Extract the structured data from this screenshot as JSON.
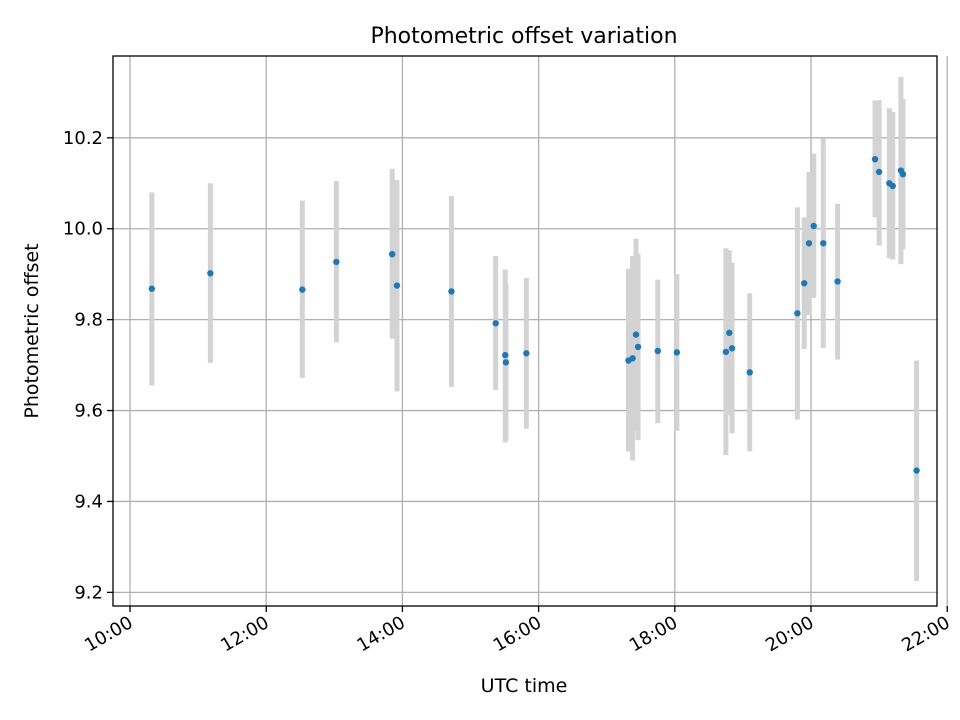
{
  "chart_data": {
    "type": "scatter",
    "title": "Photometric offset variation",
    "xlabel": "UTC time",
    "ylabel": "Photometric offset",
    "x_unit": "hours (UTC)",
    "xlim": [
      9.75,
      21.85
    ],
    "ylim": [
      9.17,
      10.38
    ],
    "x_ticks": [
      {
        "value": 10,
        "label": "10:00"
      },
      {
        "value": 12,
        "label": "12:00"
      },
      {
        "value": 14,
        "label": "14:00"
      },
      {
        "value": 16,
        "label": "16:00"
      },
      {
        "value": 18,
        "label": "18:00"
      },
      {
        "value": 20,
        "label": "20:00"
      },
      {
        "value": 22,
        "label": "22:00"
      }
    ],
    "y_ticks": [
      {
        "value": 9.2,
        "label": "9.2"
      },
      {
        "value": 9.4,
        "label": "9.4"
      },
      {
        "value": 9.6,
        "label": "9.6"
      },
      {
        "value": 9.8,
        "label": "9.8"
      },
      {
        "value": 10.0,
        "label": "10.0"
      },
      {
        "value": 10.2,
        "label": "10.2"
      }
    ],
    "grid": true,
    "marker_color": "#1f77b4",
    "errorbar_color": "#d3d3d3",
    "series": [
      {
        "name": "Photometric offset",
        "points": [
          {
            "x": 10.32,
            "y": 9.868,
            "lo": 9.655,
            "hi": 10.08
          },
          {
            "x": 11.18,
            "y": 9.902,
            "lo": 9.705,
            "hi": 10.1
          },
          {
            "x": 12.53,
            "y": 9.866,
            "lo": 9.672,
            "hi": 10.062
          },
          {
            "x": 13.03,
            "y": 9.927,
            "lo": 9.75,
            "hi": 10.105
          },
          {
            "x": 13.85,
            "y": 9.944,
            "lo": 9.758,
            "hi": 10.132
          },
          {
            "x": 13.92,
            "y": 9.875,
            "lo": 9.642,
            "hi": 10.107
          },
          {
            "x": 14.72,
            "y": 9.862,
            "lo": 9.652,
            "hi": 10.072
          },
          {
            "x": 15.37,
            "y": 9.792,
            "lo": 9.645,
            "hi": 9.94
          },
          {
            "x": 15.51,
            "y": 9.722,
            "lo": 9.53,
            "hi": 9.91
          },
          {
            "x": 15.52,
            "y": 9.706,
            "lo": 9.535,
            "hi": 9.88
          },
          {
            "x": 15.82,
            "y": 9.726,
            "lo": 9.56,
            "hi": 9.892
          },
          {
            "x": 17.32,
            "y": 9.71,
            "lo": 9.51,
            "hi": 9.912
          },
          {
            "x": 17.38,
            "y": 9.715,
            "lo": 9.49,
            "hi": 9.94
          },
          {
            "x": 17.43,
            "y": 9.767,
            "lo": 9.555,
            "hi": 9.978
          },
          {
            "x": 17.46,
            "y": 9.74,
            "lo": 9.535,
            "hi": 9.945
          },
          {
            "x": 17.75,
            "y": 9.731,
            "lo": 9.572,
            "hi": 9.888
          },
          {
            "x": 18.03,
            "y": 9.728,
            "lo": 9.555,
            "hi": 9.9
          },
          {
            "x": 18.75,
            "y": 9.729,
            "lo": 9.502,
            "hi": 9.957
          },
          {
            "x": 18.8,
            "y": 9.771,
            "lo": 9.59,
            "hi": 9.952
          },
          {
            "x": 18.84,
            "y": 9.737,
            "lo": 9.55,
            "hi": 9.925
          },
          {
            "x": 19.1,
            "y": 9.684,
            "lo": 9.51,
            "hi": 9.858
          },
          {
            "x": 19.8,
            "y": 9.814,
            "lo": 9.58,
            "hi": 10.047
          },
          {
            "x": 19.9,
            "y": 9.88,
            "lo": 9.735,
            "hi": 10.025
          },
          {
            "x": 19.97,
            "y": 9.968,
            "lo": 9.81,
            "hi": 10.125
          },
          {
            "x": 20.04,
            "y": 10.006,
            "lo": 9.848,
            "hi": 10.165
          },
          {
            "x": 20.18,
            "y": 9.968,
            "lo": 9.738,
            "hi": 10.198
          },
          {
            "x": 20.39,
            "y": 9.884,
            "lo": 9.712,
            "hi": 10.055
          },
          {
            "x": 20.94,
            "y": 10.153,
            "lo": 10.025,
            "hi": 10.282
          },
          {
            "x": 21.0,
            "y": 10.125,
            "lo": 9.963,
            "hi": 10.283
          },
          {
            "x": 21.15,
            "y": 10.1,
            "lo": 9.935,
            "hi": 10.265
          },
          {
            "x": 21.2,
            "y": 10.094,
            "lo": 9.932,
            "hi": 10.257
          },
          {
            "x": 21.32,
            "y": 10.128,
            "lo": 9.922,
            "hi": 10.334
          },
          {
            "x": 21.35,
            "y": 10.12,
            "lo": 9.955,
            "hi": 10.285
          },
          {
            "x": 21.55,
            "y": 9.468,
            "lo": 9.225,
            "hi": 9.71
          }
        ]
      }
    ]
  }
}
